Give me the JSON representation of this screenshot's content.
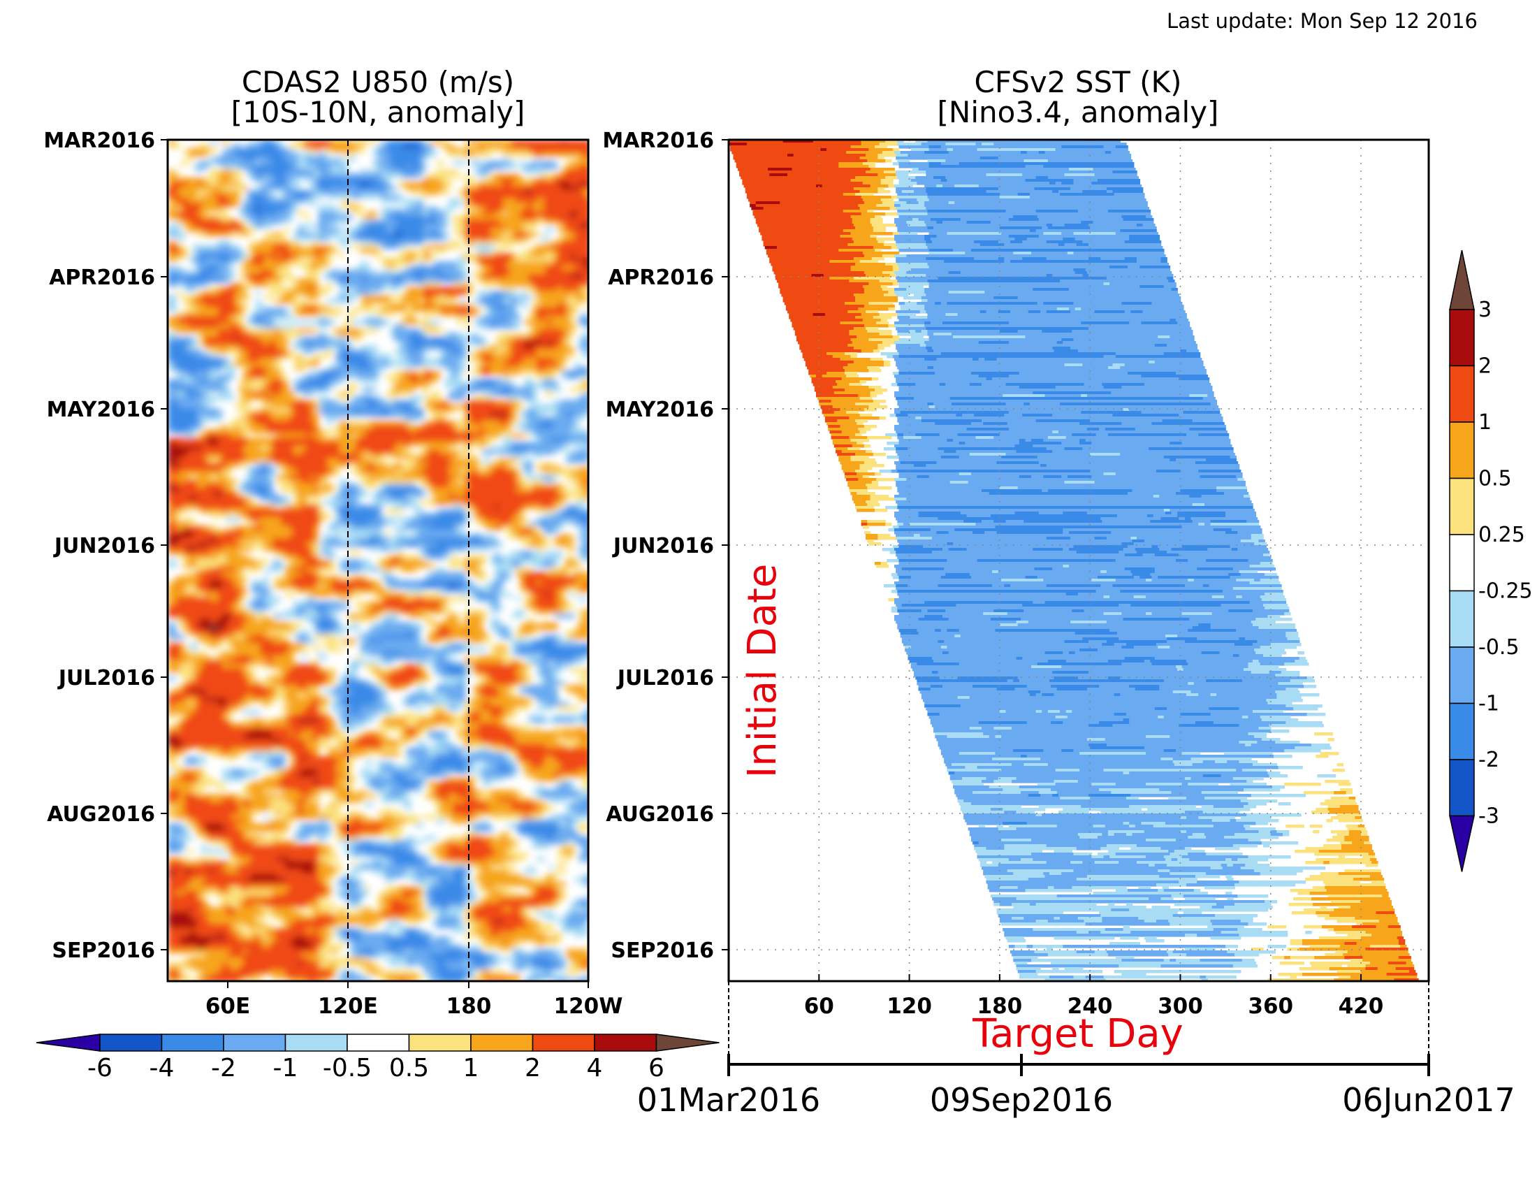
{
  "last_update": "Last update: Mon Sep 12 2016",
  "colors": {
    "red_label": "#e8000b",
    "frame": "#000000",
    "palette_neg": [
      "#2a00a5",
      "#1455c8",
      "#3a8ae8",
      "#6aaaf0",
      "#a8dcf4"
    ],
    "palette_neutral": "#ffffff",
    "palette_pos": [
      "#fbe27e",
      "#f7a51b",
      "#f04a13",
      "#a80c0c",
      "#6e4638"
    ]
  },
  "chart_data": [
    {
      "type": "heatmap",
      "title": "CDAS2 U850 (m/s)",
      "subtitle": "[10S-10N, anomaly]",
      "x_ticks": [
        "60E",
        "120E",
        "180",
        "120W"
      ],
      "y_ticks": [
        "MAR2016",
        "APR2016",
        "MAY2016",
        "JUN2016",
        "JUL2016",
        "AUG2016",
        "SEP2016"
      ],
      "xlim": [
        "30E",
        "120W"
      ],
      "ylim": [
        "01Mar2016",
        "12Sep2016"
      ],
      "reference_lines": [
        "120E",
        "180"
      ],
      "colorbar": {
        "position": "bottom",
        "levels": [
          "-6",
          "-4",
          "-2",
          "-1",
          "-0.5",
          "0.5",
          "1",
          "2",
          "4",
          "6"
        ]
      }
    },
    {
      "type": "heatmap",
      "title": "CFSv2 SST (K)",
      "subtitle": "[Nino3.4, anomaly]",
      "xlabel": "Target Day",
      "ylabel": "Initial Date",
      "x_ticks": [
        "60",
        "120",
        "180",
        "240",
        "300",
        "360",
        "420"
      ],
      "xlim": [
        0,
        465
      ],
      "y_ticks": [
        "MAR2016",
        "APR2016",
        "MAY2016",
        "JUN2016",
        "JUL2016",
        "AUG2016",
        "SEP2016"
      ],
      "ylim": [
        "01Mar2016",
        "12Sep2016"
      ],
      "grid": true,
      "colorbar": {
        "position": "right",
        "levels": [
          "3",
          "2",
          "1",
          "0.5",
          "0.25",
          "-0.25",
          "-0.5",
          "-1",
          "-2",
          "-3"
        ]
      },
      "date_axis": [
        "01Mar2016",
        "09Sep2016",
        "06Jun2017"
      ]
    }
  ]
}
